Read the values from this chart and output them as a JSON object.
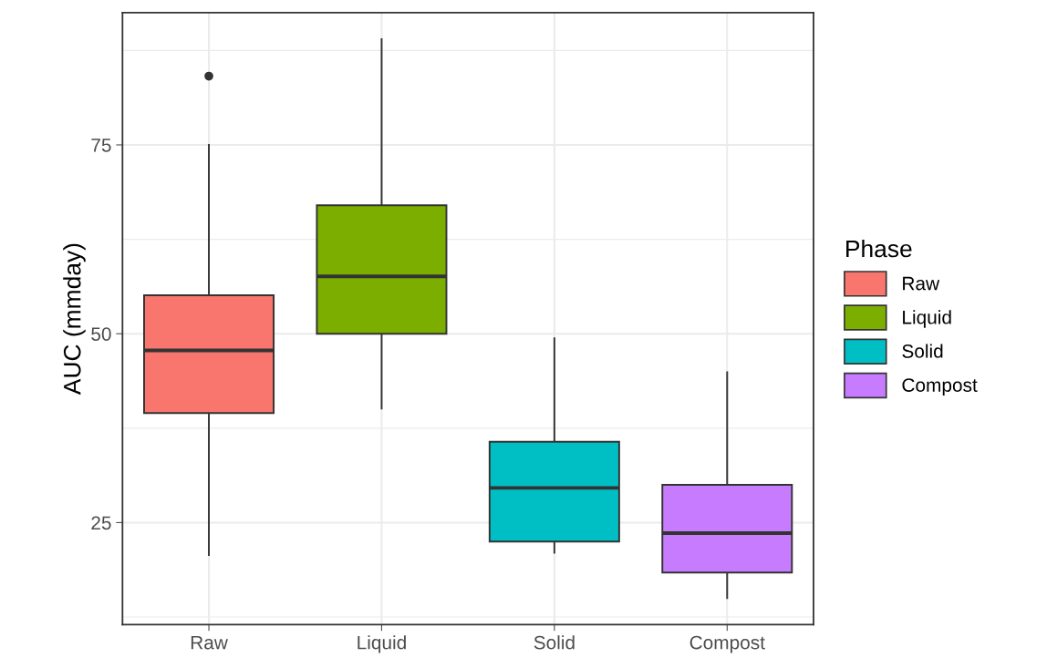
{
  "chart_data": {
    "type": "box",
    "ylabel": "AUC (mmday)",
    "legend_title": "Phase",
    "categories": [
      "Raw",
      "Liquid",
      "Solid",
      "Compost"
    ],
    "series": [
      {
        "name": "Raw",
        "color": "#f8766d",
        "boxes": [
          {
            "low": 20.7,
            "q1": 39.5,
            "median": 47.8,
            "q3": 55.1,
            "high": 75.0,
            "outliers": [
              84.1
            ]
          },
          null,
          null,
          null
        ]
      },
      {
        "name": "Liquid",
        "color": "#7cae00",
        "boxes": [
          null,
          {
            "low": 40.1,
            "q1": 50.0,
            "median": 57.6,
            "q3": 67.0,
            "high": 89.0
          },
          null,
          null
        ]
      },
      {
        "name": "Solid",
        "color": "#00bfc4",
        "boxes": [
          null,
          null,
          {
            "low": 21.0,
            "q1": 22.5,
            "median": 29.6,
            "q3": 35.7,
            "high": 49.4
          },
          null
        ]
      },
      {
        "name": "Compost",
        "color": "#c77cff",
        "boxes": [
          null,
          null,
          null,
          {
            "low": 15.0,
            "q1": 18.4,
            "median": 23.6,
            "q3": 30.0,
            "high": 44.9
          }
        ]
      }
    ],
    "ylim": [
      11.5,
      92.5
    ],
    "yticks": [
      25,
      50,
      75
    ],
    "grid": true,
    "legend": "right"
  }
}
